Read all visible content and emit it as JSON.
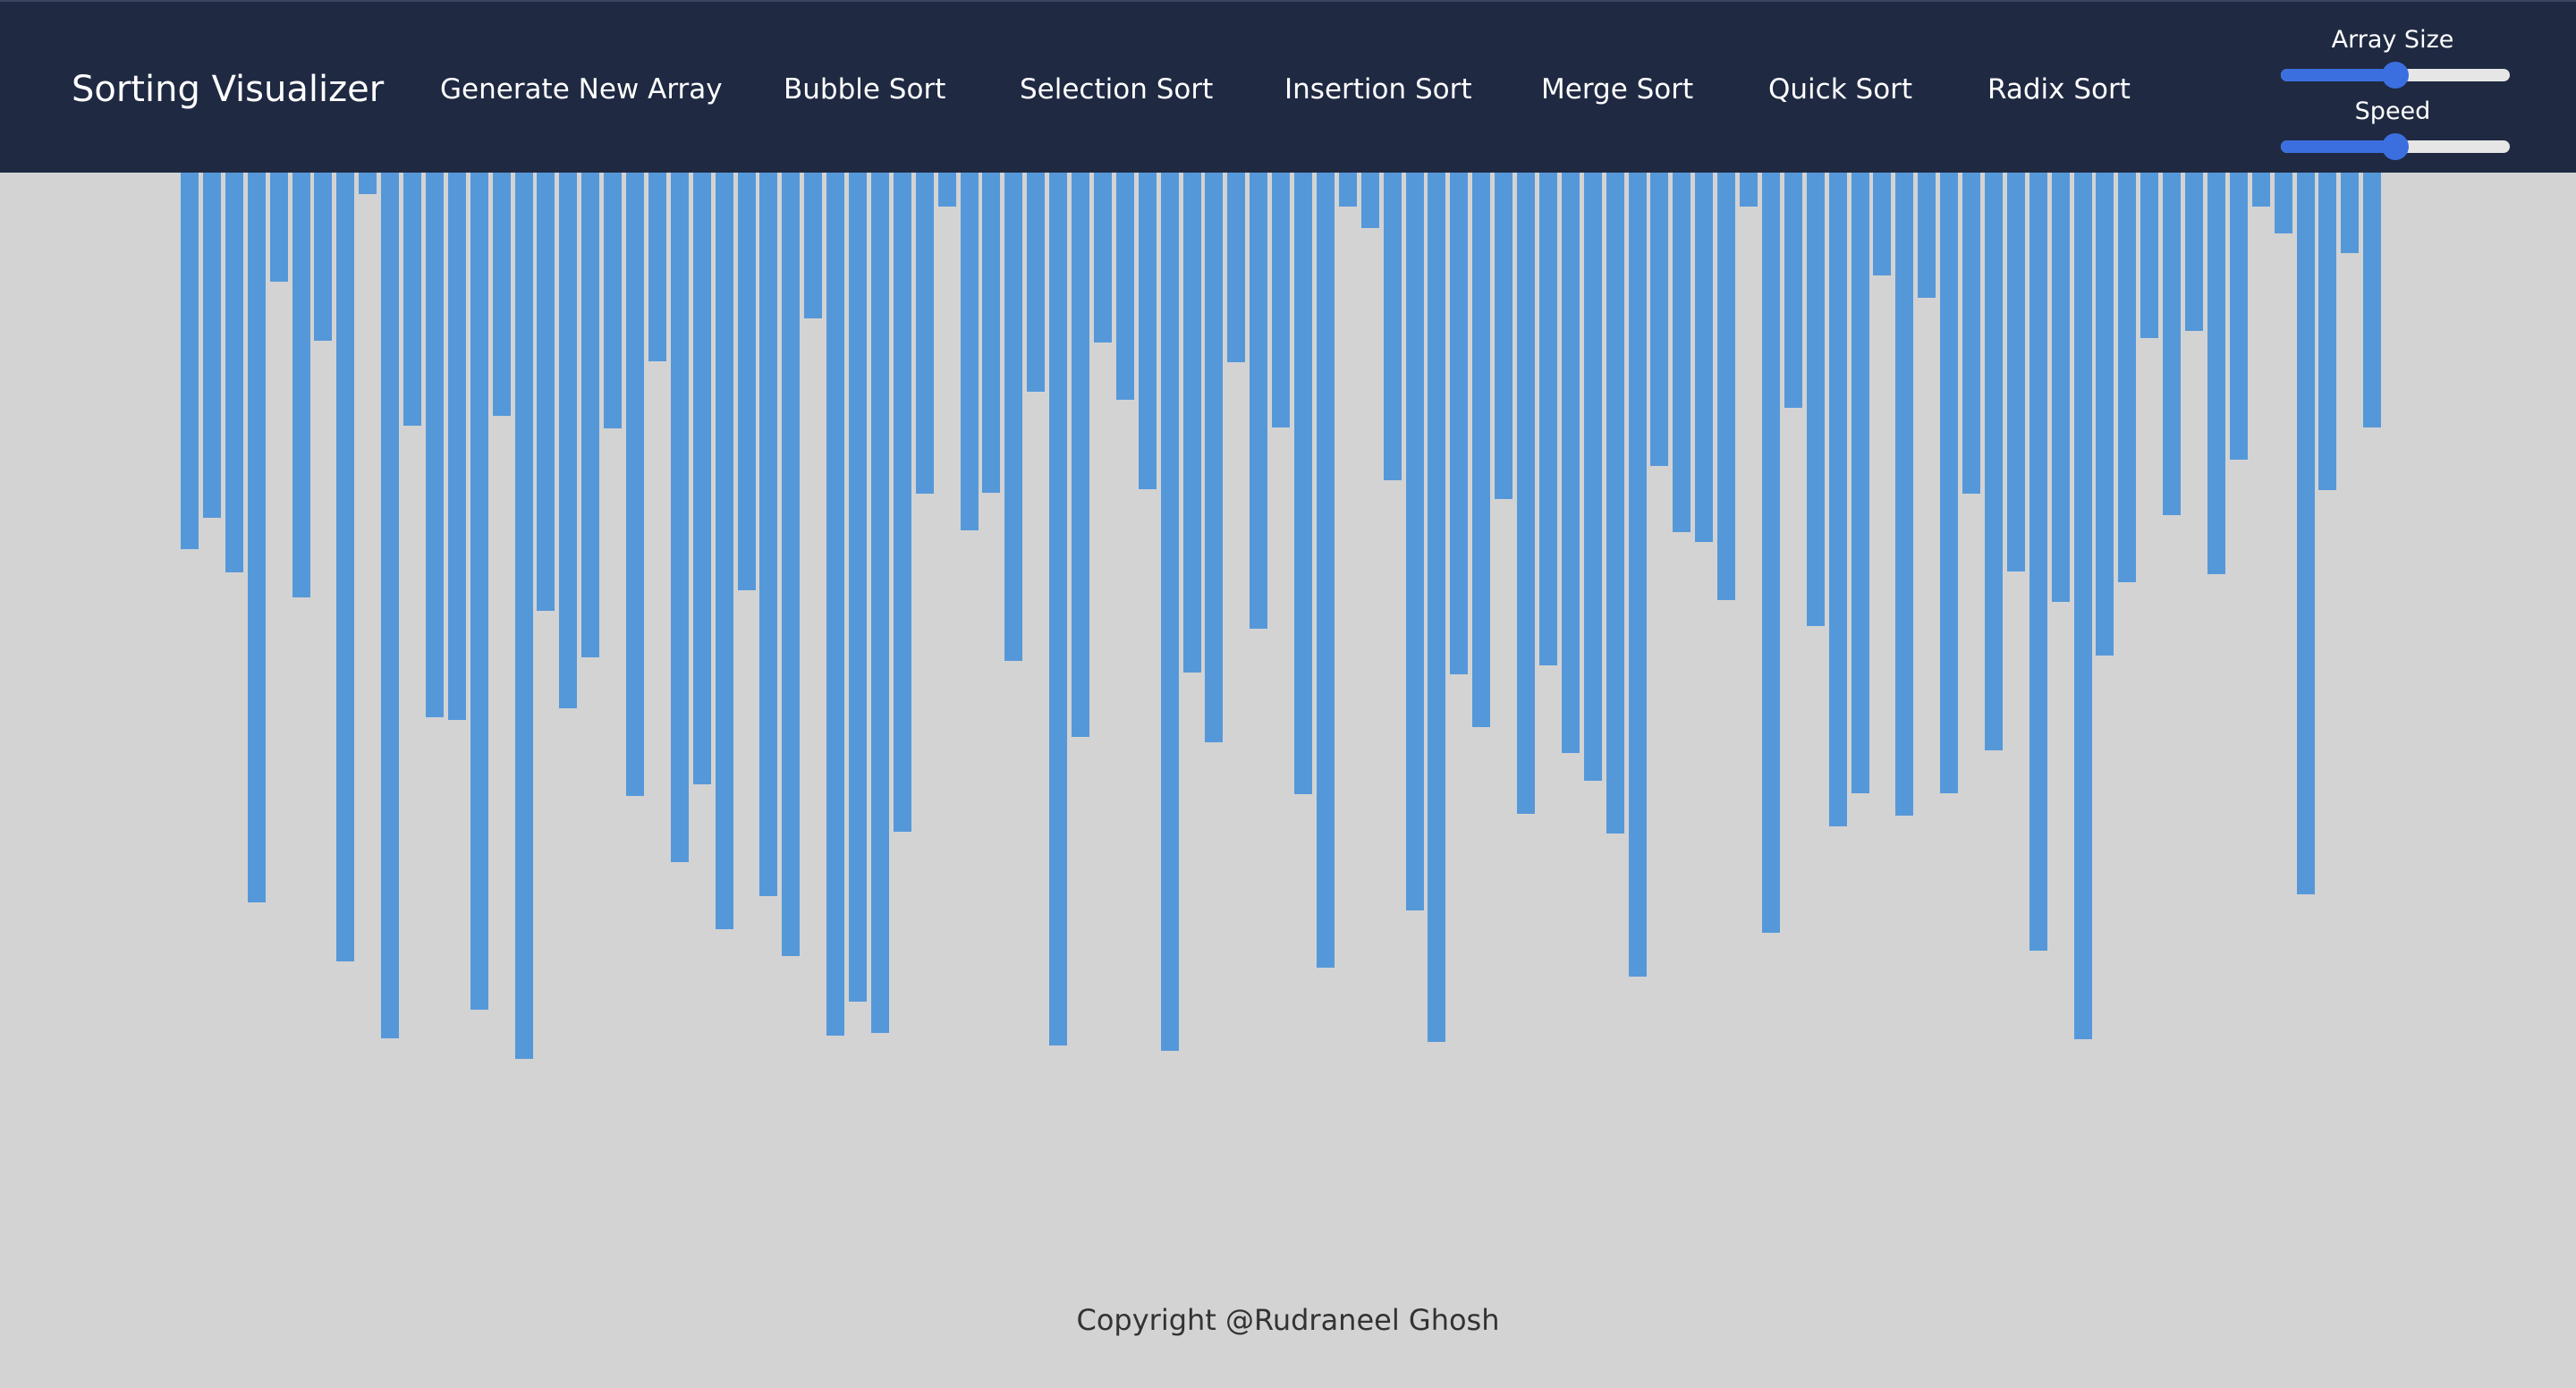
{
  "navbar": {
    "brand": "Sorting Visualizer",
    "items": [
      {
        "label": "Generate New Array"
      },
      {
        "label": "Bubble Sort"
      },
      {
        "label": "Selection Sort"
      },
      {
        "label": "Insertion Sort"
      },
      {
        "label": "Merge Sort"
      },
      {
        "label": "Quick Sort"
      },
      {
        "label": "Radix Sort"
      }
    ]
  },
  "controls": {
    "array_size": {
      "label": "Array Size",
      "value_fraction": 0.5
    },
    "speed": {
      "label": "Speed",
      "value_fraction": 0.5
    }
  },
  "array": {
    "bar_color": "#5598d9",
    "values": [
      424,
      389,
      451,
      823,
      123,
      479,
      190,
      889,
      24,
      976,
      285,
      614,
      617,
      944,
      274,
      999,
      494,
      604,
      546,
      288,
      703,
      213,
      777,
      690,
      853,
      471,
      816,
      883,
      164,
      973,
      934,
      970,
      743,
      362,
      38,
      403,
      361,
      550,
      247,
      984,
      636,
      192,
      256,
      357,
      990,
      564,
      642,
      214,
      514,
      287,
      701,
      896,
      38,
      62,
      347,
      832,
      980,
      566,
      625,
      368,
      723,
      555,
      654,
      685,
      745,
      906,
      331,
      405,
      416,
      482,
      38,
      857,
      265,
      511,
      737,
      700,
      116,
      725,
      141,
      700,
      362,
      651,
      450,
      877,
      484,
      977,
      544,
      462,
      186,
      386,
      178,
      453,
      324,
      38,
      69,
      814,
      358,
      91,
      287
    ]
  },
  "footer": {
    "text": "Copyright @Rudraneel Ghosh"
  }
}
